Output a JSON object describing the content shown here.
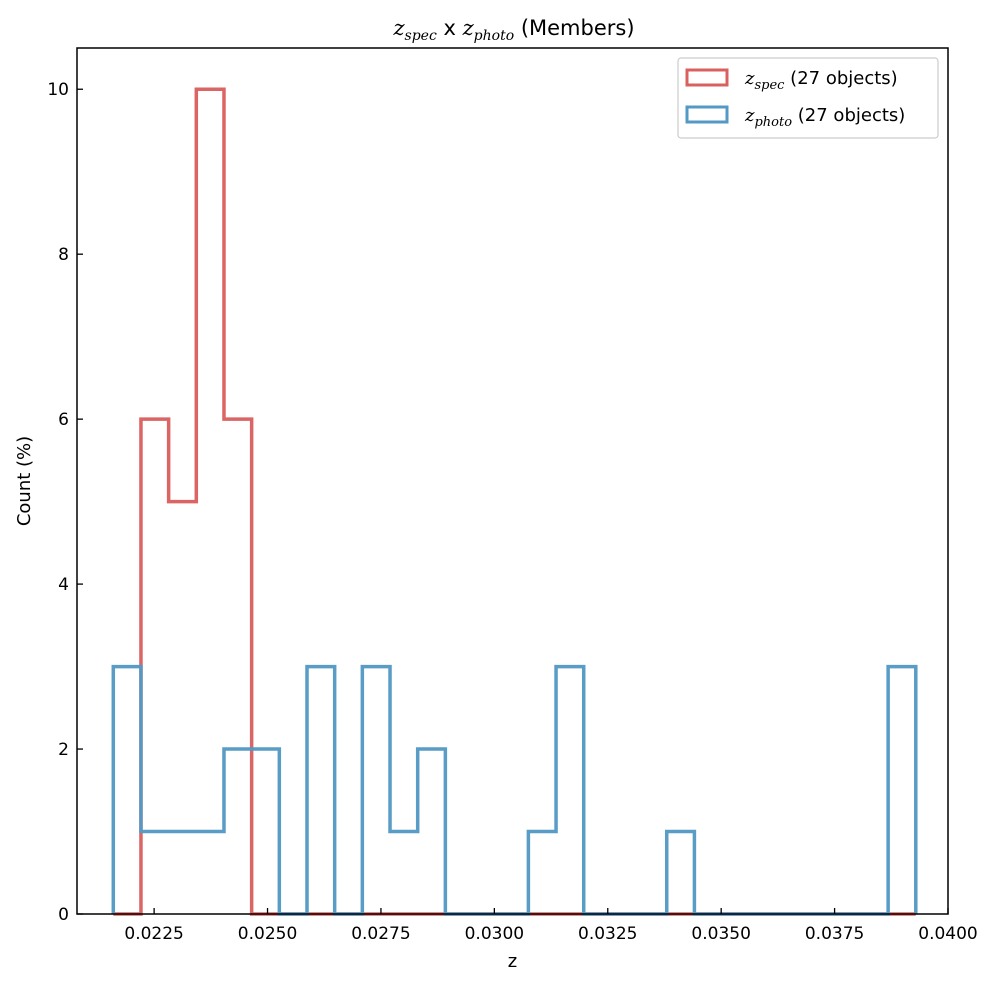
{
  "chart_data": {
    "type": "histogram",
    "title": {
      "spec_var": "z",
      "spec_sub": "spec",
      "mid": " x ",
      "photo_var": "z",
      "photo_sub": "photo",
      "suffix": " (Members)"
    },
    "xlabel": "z",
    "ylabel": "Count (%)",
    "xlim": [
      0.0208,
      0.04
    ],
    "ylim": [
      0,
      10.5
    ],
    "x_ticks": [
      0.0225,
      0.025,
      0.0275,
      0.03,
      0.0325,
      0.035,
      0.0375,
      0.04
    ],
    "x_tick_labels": [
      "0.0225",
      "0.0250",
      "0.0275",
      "0.0300",
      "0.0325",
      "0.0350",
      "0.0375",
      "0.0400"
    ],
    "y_ticks": [
      0,
      2,
      4,
      6,
      8,
      10
    ],
    "y_tick_labels": [
      "0",
      "2",
      "4",
      "6",
      "8",
      "10"
    ],
    "series": [
      {
        "name": "z_spec",
        "legend_var": "z",
        "legend_sub": "spec",
        "legend_rest": " (27 objects)",
        "color": "#d9605f",
        "bin_edges": [
          0.0216,
          0.02221,
          0.02282,
          0.02343,
          0.02404,
          0.02465,
          0.02526,
          0.02587,
          0.02648,
          0.02709,
          0.0277,
          0.02831,
          0.02892,
          0.02953,
          0.03014,
          0.03075,
          0.03136,
          0.03197,
          0.03258,
          0.03319,
          0.0338,
          0.03441,
          0.03502,
          0.03563,
          0.03624,
          0.03685,
          0.03746,
          0.03807,
          0.03868,
          0.03929
        ],
        "counts": [
          0,
          6,
          5,
          10,
          6,
          0,
          0,
          0,
          0,
          0,
          0,
          0,
          0,
          0,
          0,
          0,
          0,
          0,
          0,
          0,
          0,
          0,
          0,
          0,
          0,
          0,
          0,
          0,
          0
        ]
      },
      {
        "name": "z_photo",
        "legend_var": "z",
        "legend_sub": "photo",
        "legend_rest": " (27 objects)",
        "color": "#5499c4",
        "bin_edges": [
          0.0216,
          0.02221,
          0.02282,
          0.02343,
          0.02404,
          0.02465,
          0.02526,
          0.02587,
          0.02648,
          0.02709,
          0.0277,
          0.02831,
          0.02892,
          0.02953,
          0.03014,
          0.03075,
          0.03136,
          0.03197,
          0.03258,
          0.03319,
          0.0338,
          0.03441,
          0.03502,
          0.03563,
          0.03624,
          0.03685,
          0.03746,
          0.03807,
          0.03868,
          0.03929
        ],
        "counts": [
          3,
          1,
          1,
          1,
          2,
          2,
          0,
          3,
          0,
          3,
          1,
          2,
          0,
          0,
          0,
          1,
          3,
          0,
          0,
          0,
          1,
          0,
          0,
          0,
          0,
          0,
          0,
          0,
          3
        ]
      }
    ],
    "legend_position": "top-right",
    "grid": false
  }
}
